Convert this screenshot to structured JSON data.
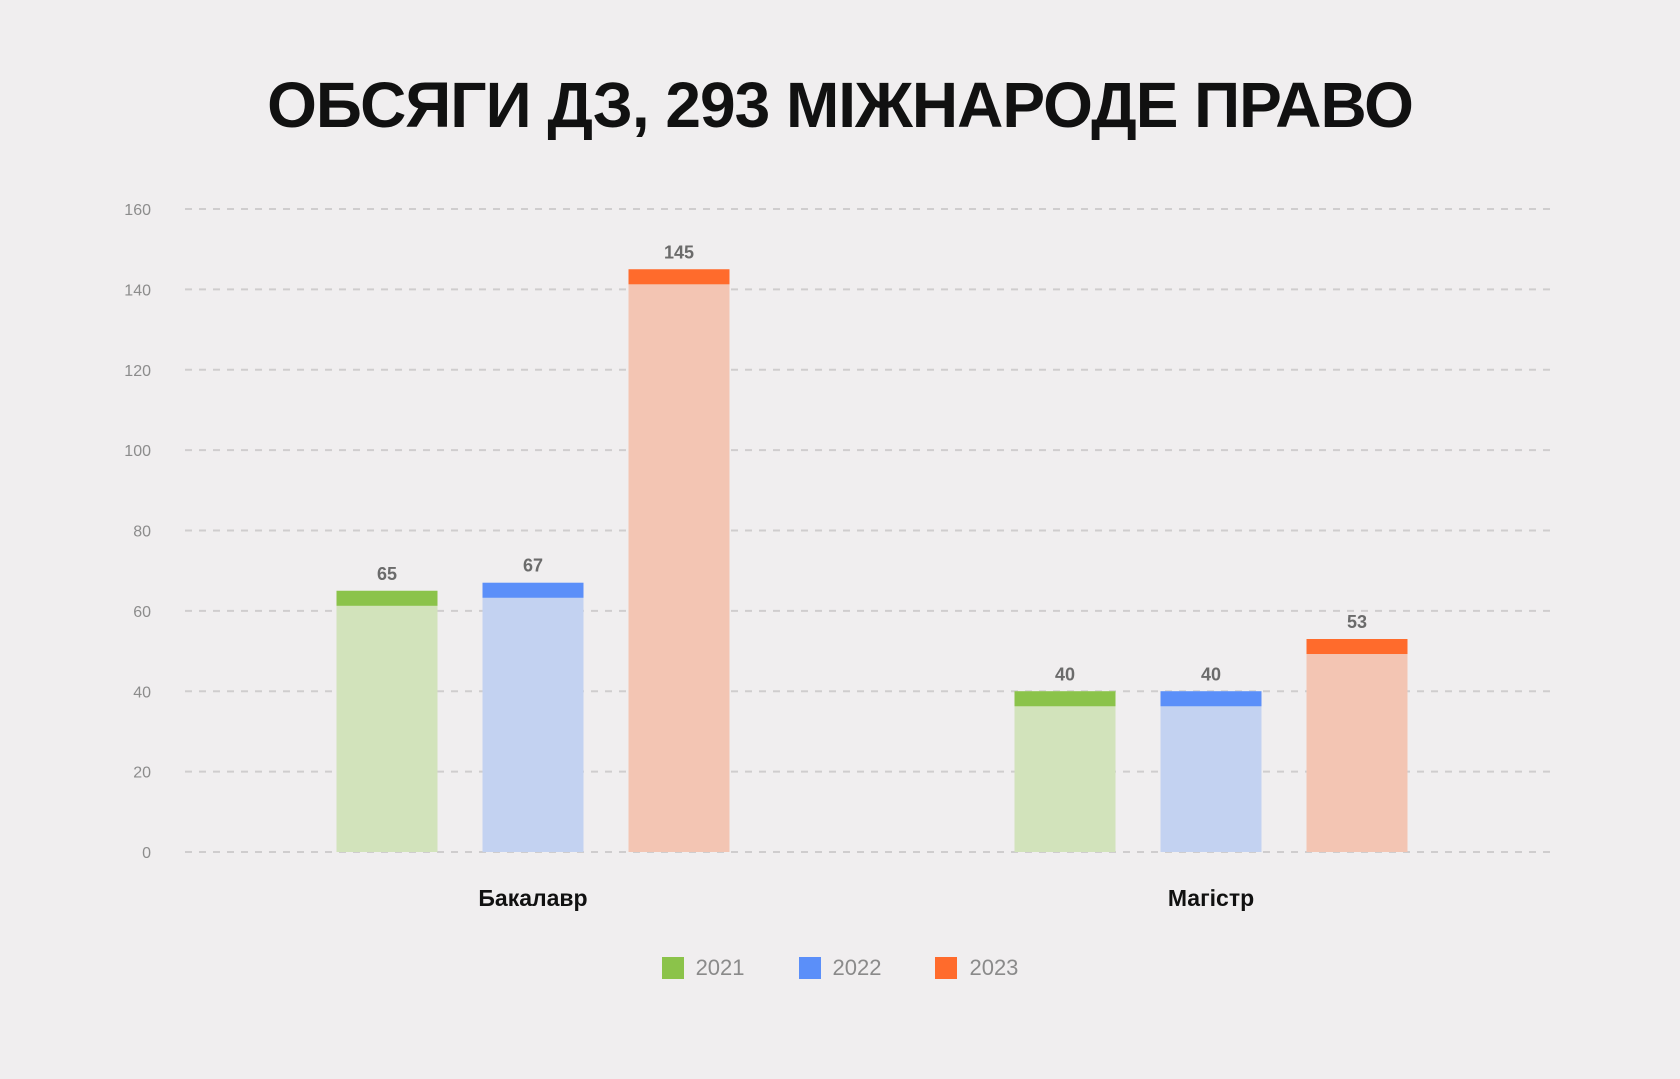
{
  "chart_data": {
    "type": "bar",
    "title": "ОБСЯГИ ДЗ, 293 МІЖНАРОДЕ ПРАВО",
    "categories": [
      "Бакалавр",
      "Магістр"
    ],
    "series": [
      {
        "name": "2021",
        "values": [
          65,
          40
        ],
        "color": "#8bc34a",
        "fill": "#d2e3bb"
      },
      {
        "name": "2022",
        "values": [
          67,
          40
        ],
        "color": "#5b8ff9",
        "fill": "#c3d2f1"
      },
      {
        "name": "2023",
        "values": [
          145,
          53
        ],
        "color": "#ff6b2c",
        "fill": "#f3c5b3"
      }
    ],
    "y_ticks": [
      "0",
      "20",
      "40",
      "60",
      "80",
      "100",
      "120",
      "140",
      "160"
    ],
    "ylim": [
      0,
      160
    ],
    "grid": true,
    "legend_position": "bottom"
  }
}
